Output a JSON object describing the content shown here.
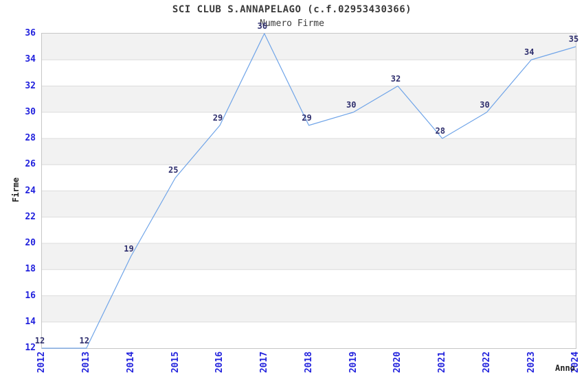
{
  "chart": {
    "title": "SCI CLUB S.ANNAPELAGO (c.f.02953430366)",
    "subtitle": "Numero Firme",
    "ylabel": "Firme",
    "xlabel": "Anno",
    "colors": {
      "line": "#6FA4E8",
      "tick_label": "#2222DD",
      "point_label": "#2F2F6E",
      "band_gray": "#F2F2F2",
      "band_white": "#FFFFFF",
      "gridline": "#DCDCDC",
      "plot_border": "#C6C6C6",
      "title_text": "#3A3A3A"
    }
  },
  "chart_data": {
    "type": "line",
    "title": "SCI CLUB S.ANNAPELAGO (c.f.02953430366)",
    "subtitle": "Numero Firme",
    "xlabel": "Anno",
    "ylabel": "Firme",
    "categories": [
      "2012",
      "2013",
      "2014",
      "2015",
      "2016",
      "2017",
      "2018",
      "2019",
      "2020",
      "2021",
      "2022",
      "2023",
      "2024"
    ],
    "values": [
      12,
      12,
      19,
      25,
      29,
      36,
      29,
      30,
      32,
      28,
      30,
      34,
      35
    ],
    "ylim": [
      12,
      36
    ],
    "yticks": [
      12,
      14,
      16,
      18,
      20,
      22,
      24,
      26,
      28,
      30,
      32,
      34,
      36
    ],
    "grid": "alternating-horizontal-bands-of-2-units",
    "legend": "none",
    "point_labels_shown": true
  }
}
